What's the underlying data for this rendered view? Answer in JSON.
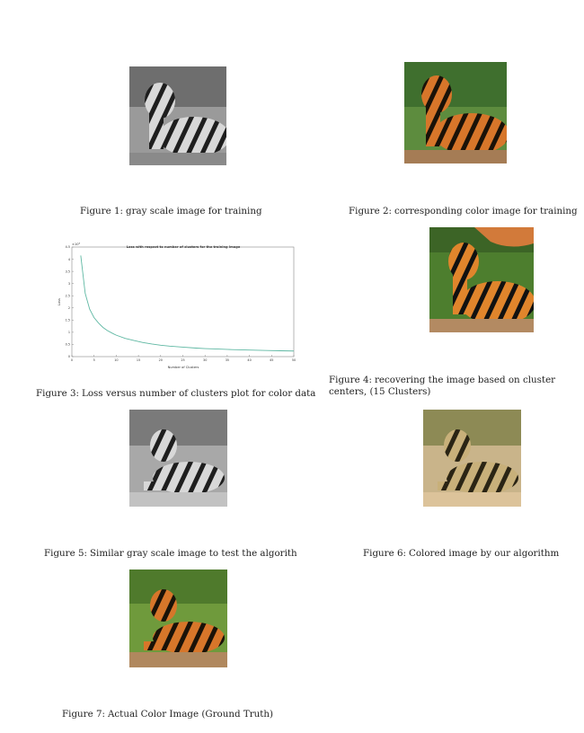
{
  "figures": [
    {
      "label": "Figure 1:",
      "caption": "gray scale image for training"
    },
    {
      "label": "Figure 2:",
      "caption": "corresponding color image for training"
    },
    {
      "label": "Figure 3:",
      "caption": "Loss versus number of clusters plot for color data"
    },
    {
      "label": "Figure 4:",
      "caption": "recovering the image based on cluster centers, (15 Clusters)"
    },
    {
      "label": "Figure 5:",
      "caption": "Similar gray scale image to test the algorith"
    },
    {
      "label": "Figure 6:",
      "caption": "Colored image by our algorithm"
    },
    {
      "label": "Figure 7:",
      "caption": "Actual Color Image (Ground Truth)"
    }
  ],
  "chart_data": {
    "type": "line",
    "title": "Loss with respect to number of clusters for the training image",
    "xlabel": "Number of Clusters",
    "ylabel": "Loss",
    "y_multiplier": "×10⁸",
    "xlim": [
      0,
      50
    ],
    "ylim": [
      0,
      4.5
    ],
    "xticks": [
      0,
      5,
      10,
      15,
      20,
      25,
      30,
      35,
      40,
      45,
      50
    ],
    "yticks": [
      0,
      0.5,
      1,
      1.5,
      2,
      2.5,
      3,
      3.5,
      4,
      4.5
    ],
    "line_color": "#5fb8a3",
    "grid": false,
    "x": [
      2,
      3,
      4,
      5,
      6,
      7,
      8,
      9,
      10,
      12,
      14,
      16,
      18,
      20,
      22,
      25,
      28,
      30,
      33,
      36,
      40,
      44,
      47,
      50
    ],
    "y": [
      4.15,
      2.6,
      1.95,
      1.6,
      1.38,
      1.2,
      1.07,
      0.97,
      0.88,
      0.75,
      0.66,
      0.58,
      0.52,
      0.47,
      0.43,
      0.39,
      0.35,
      0.33,
      0.31,
      0.29,
      0.27,
      0.25,
      0.24,
      0.23
    ]
  }
}
